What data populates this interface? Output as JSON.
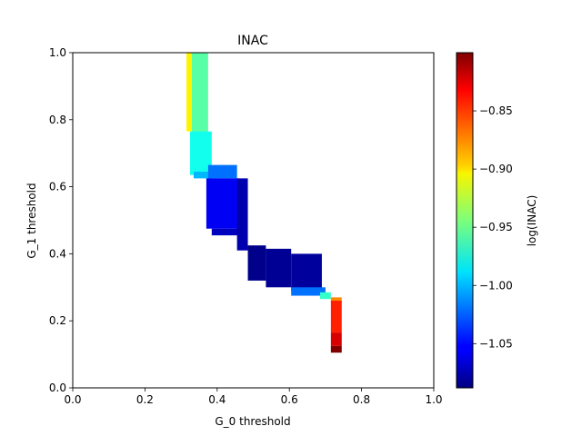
{
  "chart_data": {
    "type": "heatmap",
    "title": "INAC",
    "xlabel": "G_0 threshold",
    "ylabel": "G_1 threshold",
    "xlim": [
      0.0,
      1.0
    ],
    "ylim": [
      0.0,
      1.0
    ],
    "x_ticks": [
      "0.0",
      "0.2",
      "0.4",
      "0.6",
      "0.8",
      "1.0"
    ],
    "y_ticks": [
      "0.0",
      "0.2",
      "0.4",
      "0.6",
      "0.8",
      "1.0"
    ],
    "grid": false,
    "colorbar": {
      "label": "log(INAC)",
      "colormap": "jet",
      "vmin": -1.088,
      "vmax": -0.8,
      "ticks": [
        "−1.05",
        "−1.00",
        "−0.95",
        "−0.90",
        "−0.85"
      ]
    },
    "cells": [
      {
        "x": [
          0.315,
          0.33
        ],
        "y": [
          0.765,
          1.0
        ],
        "value": -0.905
      },
      {
        "x": [
          0.33,
          0.375
        ],
        "y": [
          0.745,
          1.0
        ],
        "value": -0.955
      },
      {
        "x": [
          0.325,
          0.385
        ],
        "y": [
          0.635,
          0.765
        ],
        "value": -0.975
      },
      {
        "x": [
          0.335,
          0.385
        ],
        "y": [
          0.625,
          0.645
        ],
        "value": -1.0
      },
      {
        "x": [
          0.375,
          0.455
        ],
        "y": [
          0.625,
          0.665
        ],
        "value": -1.02
      },
      {
        "x": [
          0.37,
          0.46
        ],
        "y": [
          0.475,
          0.625
        ],
        "value": -1.055
      },
      {
        "x": [
          0.385,
          0.46
        ],
        "y": [
          0.455,
          0.475
        ],
        "value": -1.07
      },
      {
        "x": [
          0.455,
          0.485
        ],
        "y": [
          0.41,
          0.625
        ],
        "value": -1.075
      },
      {
        "x": [
          0.485,
          0.535
        ],
        "y": [
          0.32,
          0.425
        ],
        "value": -1.085
      },
      {
        "x": [
          0.535,
          0.605
        ],
        "y": [
          0.3,
          0.415
        ],
        "value": -1.082
      },
      {
        "x": [
          0.605,
          0.69
        ],
        "y": [
          0.29,
          0.4
        ],
        "value": -1.08
      },
      {
        "x": [
          0.605,
          0.7
        ],
        "y": [
          0.275,
          0.3
        ],
        "value": -1.02
      },
      {
        "x": [
          0.685,
          0.715
        ],
        "y": [
          0.265,
          0.285
        ],
        "value": -0.965
      },
      {
        "x": [
          0.715,
          0.745
        ],
        "y": [
          0.255,
          0.27
        ],
        "value": -0.875
      },
      {
        "x": [
          0.715,
          0.745
        ],
        "y": [
          0.165,
          0.26
        ],
        "value": -0.845
      },
      {
        "x": [
          0.715,
          0.745
        ],
        "y": [
          0.125,
          0.165
        ],
        "value": -0.825
      },
      {
        "x": [
          0.715,
          0.745
        ],
        "y": [
          0.105,
          0.125
        ],
        "value": -0.8
      }
    ]
  }
}
